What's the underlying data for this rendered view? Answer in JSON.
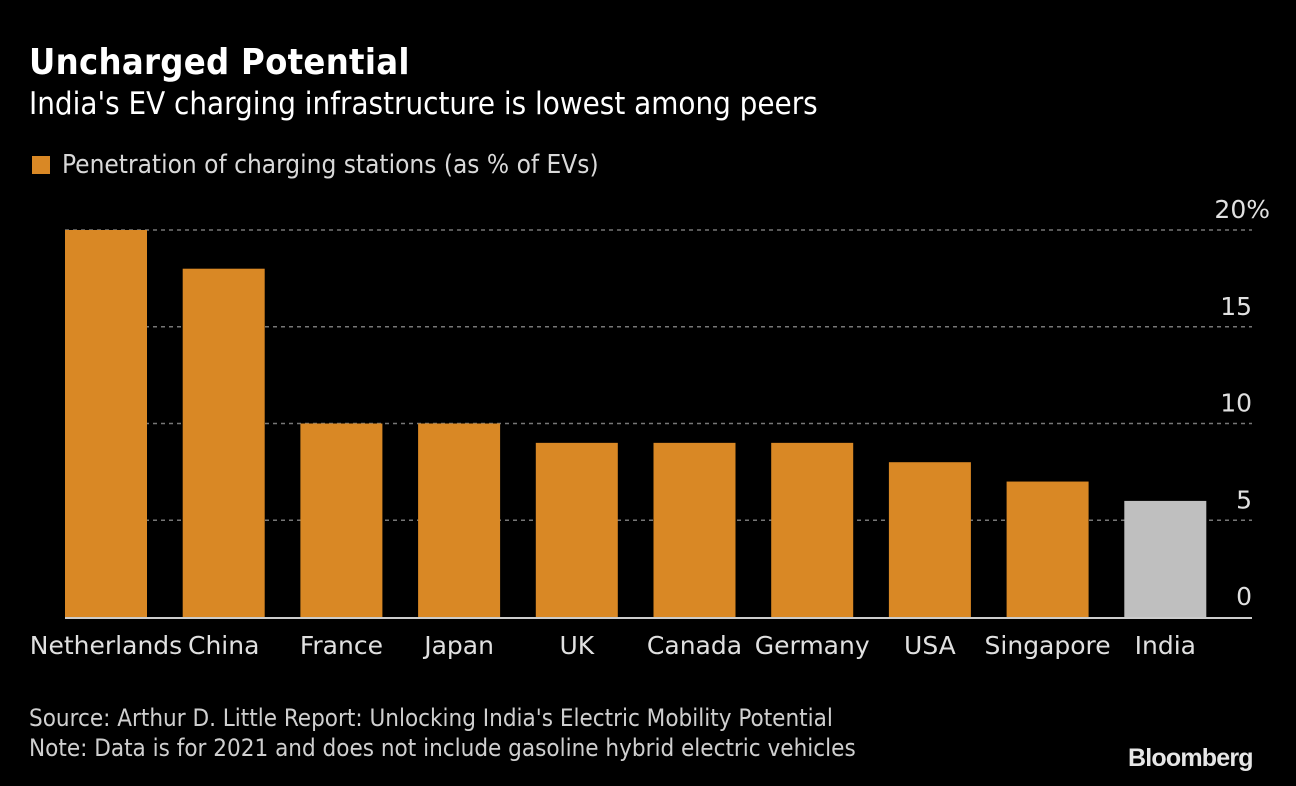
{
  "header": {
    "title": "Uncharged Potential",
    "subtitle": "India's EV charging infrastructure is lowest among peers"
  },
  "footer": {
    "source": "Source: Arthur D. Little Report: Unlocking India's Electric Mobility Potential",
    "note": "Note: Data is for 2021 and does not include gasoline hybrid electric vehicles",
    "brand": "Bloomberg"
  },
  "colors": {
    "primary": "#d98825",
    "highlight": "#bfbfbf",
    "grid": "#777777",
    "axis": "#cccccc",
    "text": "#e0e0e0"
  },
  "chart_data": {
    "type": "bar",
    "title": "Uncharged Potential",
    "subtitle": "India's EV charging infrastructure is lowest among peers",
    "legend": [
      {
        "label": "Penetration of charging stations (as % of EVs)",
        "color": "#d98825"
      }
    ],
    "legend_position": "top-left",
    "categories": [
      "Netherlands",
      "China",
      "France",
      "Japan",
      "UK",
      "Canada",
      "Germany",
      "USA",
      "Singapore",
      "India"
    ],
    "series": [
      {
        "name": "Penetration of charging stations (as % of EVs)",
        "values": [
          20,
          18,
          10,
          10,
          9,
          9,
          9,
          8,
          7,
          6
        ]
      }
    ],
    "highlight_category": "India",
    "xlabel": "",
    "ylabel": "",
    "ylim": [
      0,
      20
    ],
    "yticks": [
      0,
      5,
      10,
      15,
      20
    ],
    "ytick_labels": [
      "0",
      "5",
      "10",
      "15",
      "20%"
    ],
    "y_axis_side": "right",
    "grid": true
  }
}
